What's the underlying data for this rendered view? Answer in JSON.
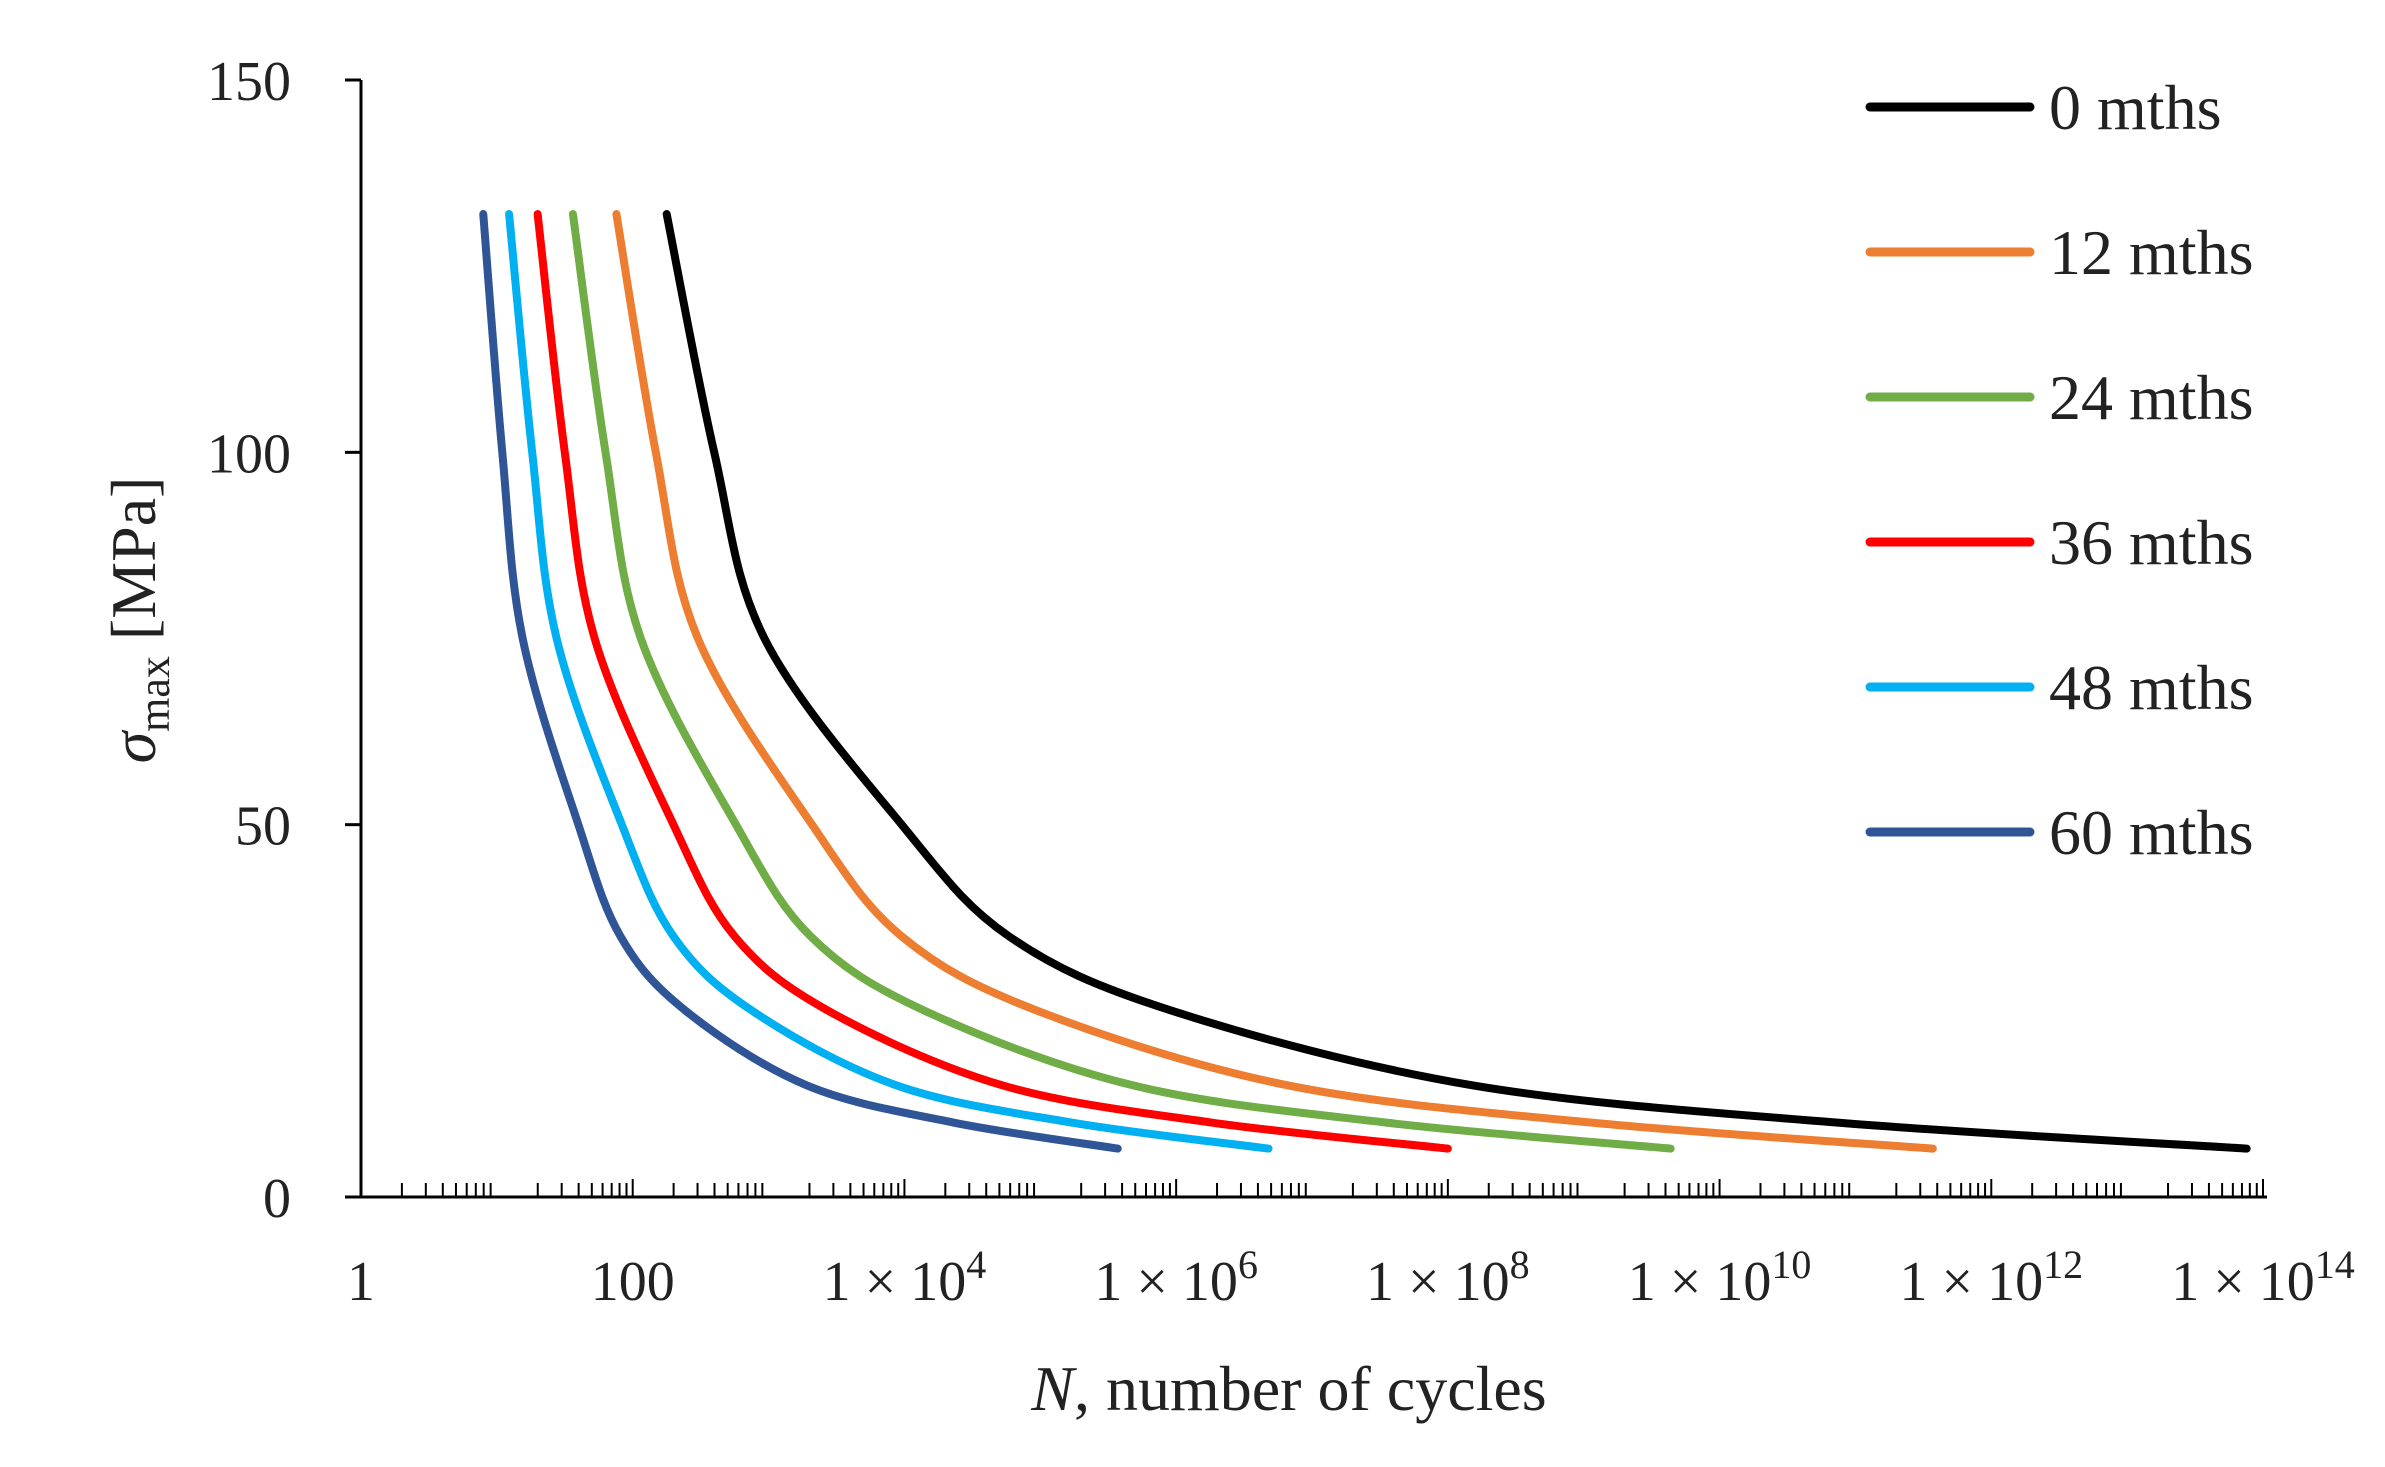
{
  "chart_data": {
    "type": "line",
    "title": "",
    "xlabel_italic": "N",
    "xlabel_rest": ", number of cycles",
    "ylabel_symbol": "σ",
    "ylabel_sub": "max",
    "ylabel_unit": " [MPa]",
    "x_scale": "log10",
    "xlim_log10": [
      0,
      14
    ],
    "ylim": [
      0,
      150
    ],
    "grid": false,
    "legend_position": "top-right",
    "x_ticks": [
      {
        "exp": 0,
        "base": "1",
        "sup": ""
      },
      {
        "exp": 2,
        "base": "100",
        "sup": ""
      },
      {
        "exp": 4,
        "base": "1 × 10",
        "sup": "4"
      },
      {
        "exp": 6,
        "base": "1 × 10",
        "sup": "6"
      },
      {
        "exp": 8,
        "base": "1 × 10",
        "sup": "8"
      },
      {
        "exp": 10,
        "base": "1 × 10",
        "sup": "10"
      },
      {
        "exp": 12,
        "base": "1 × 10",
        "sup": "12"
      },
      {
        "exp": 14,
        "base": "1 × 10",
        "sup": "14"
      }
    ],
    "y_ticks": [
      "0",
      "50",
      "100",
      "150"
    ],
    "y_tick_values": [
      0,
      50,
      100,
      150
    ],
    "sigma_max_MPa": [
      132,
      100,
      75,
      50,
      35,
      25,
      15,
      10,
      6.5
    ],
    "series": [
      {
        "name": "0 mths",
        "color": "#000000",
        "log10_N": [
          2.25,
          2.6,
          2.97,
          3.98,
          4.77,
          5.97,
          8.18,
          10.86,
          13.88
        ]
      },
      {
        "name": "12 mths",
        "color": "#ED7D31",
        "log10_N": [
          1.88,
          2.17,
          2.48,
          3.32,
          3.98,
          4.98,
          6.82,
          9.05,
          11.57
        ]
      },
      {
        "name": "24 mths",
        "color": "#70AD47",
        "log10_N": [
          1.56,
          1.8,
          2.06,
          2.76,
          3.31,
          4.15,
          5.68,
          7.54,
          9.64
        ]
      },
      {
        "name": "36 mths",
        "color": "#FF0000",
        "log10_N": [
          1.3,
          1.5,
          1.72,
          2.3,
          2.75,
          3.44,
          4.72,
          6.26,
          8.0
        ]
      },
      {
        "name": "48 mths",
        "color": "#00B0F0",
        "log10_N": [
          1.09,
          1.26,
          1.44,
          1.92,
          2.3,
          2.88,
          3.94,
          5.23,
          6.68
        ]
      },
      {
        "name": "60 mths",
        "color": "#2F5597",
        "log10_N": [
          0.9,
          1.04,
          1.19,
          1.6,
          1.91,
          2.39,
          3.28,
          4.36,
          5.57
        ]
      }
    ]
  }
}
